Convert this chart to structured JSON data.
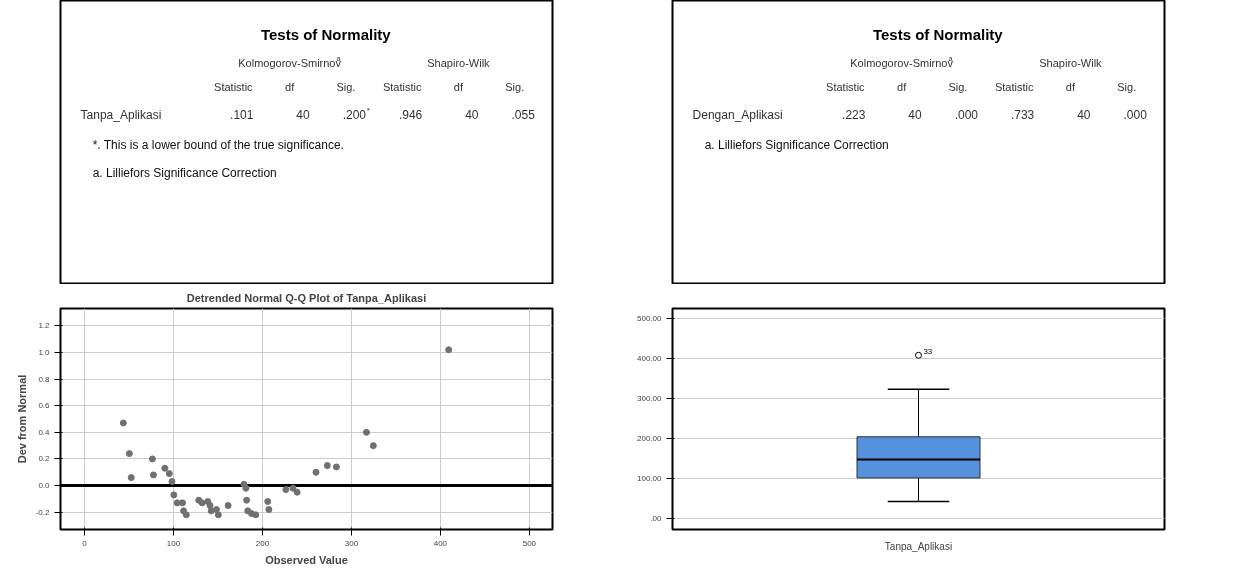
{
  "chart_data": [
    {
      "type": "other",
      "title": "Tests of Normality",
      "annotations": [
        "Kolmogorov-Smirnov$^{a}$",
        "Shapiro-Wilk",
        "Statistic",
        "df",
        "Sig.",
        "Statistic",
        "df",
        "Sig.",
        "Tanpa_Aplikasi",
        ".101",
        "40",
        ".200$^{*}$",
        ".946",
        "40",
        ".055",
        "*. This is a lower bound of the true significance.",
        "a. Lilliefors Significance Correction"
      ]
    },
    {
      "type": "other",
      "title": "Tests of Normality",
      "annotations": [
        "Kolmogorov-Smirnov$^{a}$",
        "Shapiro-Wilk",
        "Statistic",
        "df",
        "Sig.",
        "Statistic",
        "df",
        "Sig.",
        "Dengan_Aplikasi",
        ".223",
        "40",
        ".000",
        ".733",
        "40",
        ".000",
        "a. Lilliefors Significance Correction"
      ]
    },
    {
      "type": "scatter",
      "title": "Detrended Normal Q-Q Plot of Tanpa_Aplikasi",
      "xlabel": "Observed Value",
      "ylabel": "Dev from Normal",
      "marker": "circle",
      "grid": true,
      "x": [
        43.6,
        50.4,
        52.5,
        76.3,
        77.5,
        90.3,
        95.3,
        98.3,
        100.4,
        104.2,
        110.2,
        111.4,
        114.4,
        128.4,
        132.2,
        138.6,
        141.1,
        142.4,
        148.3,
        150.4,
        161.4,
        179.2,
        181.4,
        182.2,
        183.5,
        187.7,
        192.4,
        205.9,
        207.2,
        226.3,
        234.3,
        239.0,
        260.2,
        272.9,
        283.1,
        316.9,
        324.6,
        409.3
      ],
      "series": [
        {
          "color": "#707070",
          "values": [
            0.47,
            0.24,
            0.06,
            0.2,
            0.08,
            0.13,
            0.09,
            0.03,
            -0.07,
            -0.13,
            -0.13,
            -0.19,
            -0.22,
            -0.11,
            -0.13,
            -0.12,
            -0.15,
            -0.19,
            -0.18,
            -0.22,
            -0.15,
            0.01,
            -0.02,
            -0.11,
            -0.19,
            -0.21,
            -0.22,
            -0.12,
            -0.18,
            -0.03,
            -0.02,
            -0.05,
            0.1,
            0.15,
            0.14,
            0.4,
            0.3,
            1.02
          ]
        }
      ],
      "xlim": [
        -27,
        526
      ],
      "xticks": [
        0,
        100,
        200,
        300,
        400,
        500
      ],
      "ylim": [
        -0.33,
        1.33
      ],
      "yticks": [
        {
          "value": -0.2,
          "label": "-0.2"
        },
        {
          "value": 0,
          "label": "0.0"
        },
        0.2,
        0.4,
        0.6,
        0.8,
        {
          "value": 1,
          "label": "1.0"
        },
        1.2
      ],
      "ref_lines": [
        {
          "axis": "y",
          "value": 0,
          "color": "#000000"
        }
      ]
    },
    {
      "type": "box",
      "categories": [
        "Tanpa_Aplikasi"
      ],
      "grid": "y",
      "series": [
        {
          "color": "#5591dd",
          "boxes": [
            {
              "low": 43,
              "q1": 102,
              "median": 148,
              "q3": 205,
              "high": 324,
              "outliers": [
                409
              ]
            }
          ]
        }
      ],
      "ylim": [
        -27,
        526
      ],
      "yticks": [
        {
          "value": 0,
          "label": ".00"
        },
        {
          "value": 100,
          "label": "100.00"
        },
        {
          "value": 200,
          "label": "200.00"
        },
        {
          "value": 300,
          "label": "300.00"
        },
        {
          "value": 400,
          "label": "400.00"
        },
        {
          "value": 500,
          "label": "500.00"
        }
      ],
      "annotations": [
        "33"
      ]
    }
  ]
}
